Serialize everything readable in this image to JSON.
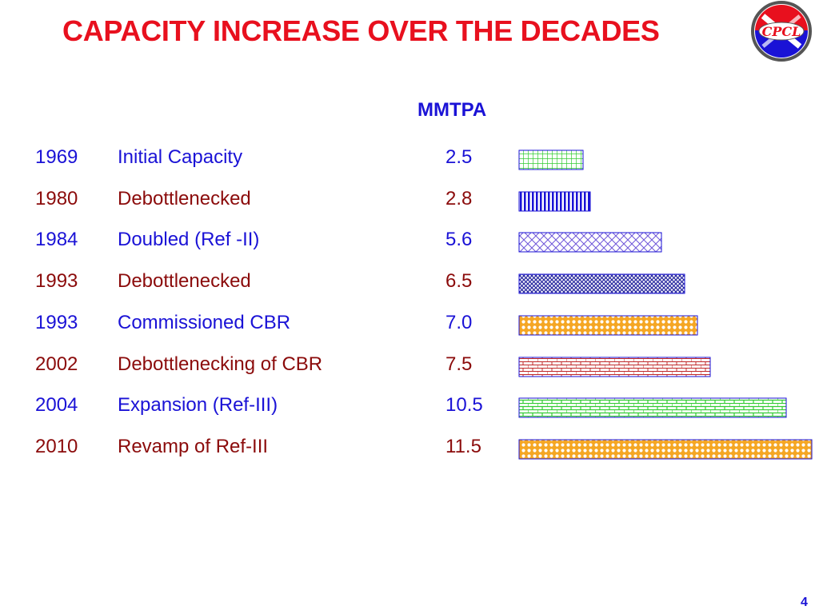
{
  "title": "CAPACITY INCREASE OVER THE DECADES",
  "logo": {
    "text": "CPCL",
    "colors": {
      "red": "#e8101e",
      "blue": "#1a12d6",
      "ring": "#555555"
    }
  },
  "unit": "MMTPA",
  "colors": {
    "blue_text": "#1a12d6",
    "red_text": "#8b0b0b",
    "title": "#e8101e"
  },
  "rows": [
    {
      "year": "1969",
      "description": "Initial Capacity",
      "value": "2.5"
    },
    {
      "year": "1980",
      "description": "Debottlenecked",
      "value": "2.8"
    },
    {
      "year": "1984",
      "description": "Doubled (Ref -II)",
      "value": "5.6"
    },
    {
      "year": "1993",
      "description": "Debottlenecked",
      "value": "6.5"
    },
    {
      "year": "1993",
      "description": "Commissioned CBR",
      "value": "7.0"
    },
    {
      "year": "2002",
      "description": "Debottlenecking of CBR",
      "value": "7.5"
    },
    {
      "year": "2004",
      "description": "Expansion (Ref-III)",
      "value": "10.5"
    },
    {
      "year": "2010",
      "description": "Revamp of Ref-III",
      "value": "11.5"
    }
  ],
  "chart_data": {
    "type": "bar",
    "orientation": "horizontal",
    "categories": [
      "1969",
      "1980",
      "1984",
      "1993",
      "1993",
      "2002",
      "2004",
      "2010"
    ],
    "values": [
      2.5,
      2.8,
      5.6,
      6.5,
      7.0,
      7.5,
      10.5,
      11.5
    ],
    "bar_styles": [
      {
        "pattern": "grid",
        "fill": "#ffffff",
        "stroke": "#33cc33"
      },
      {
        "pattern": "vertical",
        "fill": "#ffffff",
        "stroke": "#1a12d6"
      },
      {
        "pattern": "diamond",
        "fill": "#ffffff",
        "stroke": "#6f57d9"
      },
      {
        "pattern": "diamond",
        "fill": "#ffffff",
        "stroke": "#2a2aa0"
      },
      {
        "pattern": "circles",
        "fill": "#ffffff",
        "stroke": "#f5a623"
      },
      {
        "pattern": "brick",
        "fill": "#ffffff",
        "stroke": "#c0282a"
      },
      {
        "pattern": "brick",
        "fill": "#ffffff",
        "stroke": "#33cc33"
      },
      {
        "pattern": "circles",
        "fill": "#ffffff",
        "stroke": "#f5a623"
      }
    ],
    "bar_border": "#1a12d6"
  },
  "page_number": "4"
}
